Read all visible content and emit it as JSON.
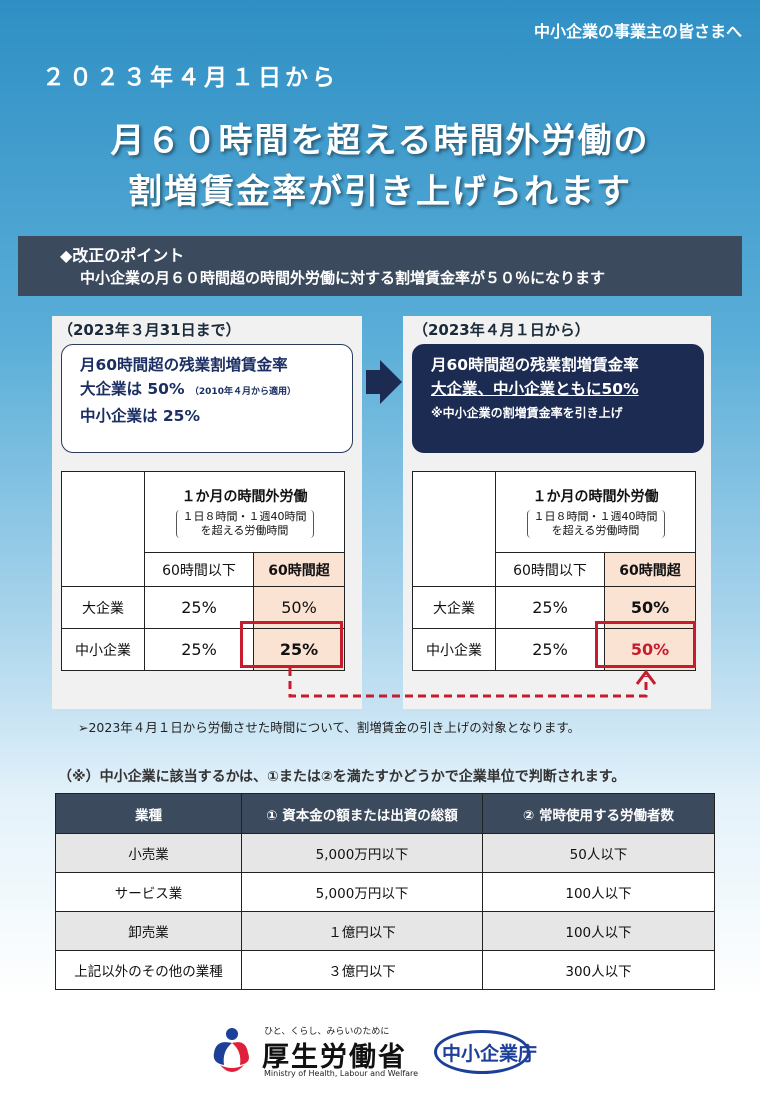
{
  "header": {
    "audience": "中小企業の事業主の皆さまへ",
    "date": "２０２３年４月１日から",
    "title_line1": "月６０時間を超える時間外労働の",
    "title_line2": "割増賃金率が引き上げられます"
  },
  "point": {
    "heading": "◆改正のポイント",
    "text": "中小企業の月６０時間超の時間外労働に対する割増賃金率が５０％になります"
  },
  "before": {
    "period": "（2023年３月31日まで）",
    "rate_title": "月60時間超の残業割増賃金率",
    "large": "大企業は 50%",
    "large_note": "（2010年４月から適用）",
    "sme": "中小企業は 25%",
    "table": {
      "head_main": "１か月の時間外労働",
      "head_sub1": "１日８時間・１週40時間",
      "head_sub2": "を超える労働時間",
      "col1": "60時間以下",
      "col2": "60時間超",
      "rows": [
        {
          "label": "大企業",
          "a": "25%",
          "b": "50%"
        },
        {
          "label": "中小企業",
          "a": "25%",
          "b": "25%"
        }
      ]
    }
  },
  "after": {
    "period": "（2023年４月１日から）",
    "rate_title": "月60時間超の残業割増賃金率",
    "both": "大企業、中小企業ともに50%",
    "note": "※中小企業の割増賃金率を引き上げ",
    "table": {
      "head_main": "１か月の時間外労働",
      "head_sub1": "１日８時間・１週40時間",
      "head_sub2": "を超える労働時間",
      "col1": "60時間以下",
      "col2": "60時間超",
      "rows": [
        {
          "label": "大企業",
          "a": "25%",
          "b": "50%"
        },
        {
          "label": "中小企業",
          "a": "25%",
          "b": "50%"
        }
      ]
    }
  },
  "notes": {
    "applies": "➢2023年４月１日から労働させた時間について、割増賃金の引き上げの対象となります。",
    "criteria": "（※）中小企業に該当するかは、①または②を満たすかどうかで企業単位で判断されます。"
  },
  "criteria_table": {
    "headers": [
      "業種",
      "① 資本金の額または出資の総額",
      "② 常時使用する労働者数"
    ],
    "rows": [
      [
        "小売業",
        "5,000万円以下",
        "50人以下"
      ],
      [
        "サービス業",
        "5,000万円以下",
        "100人以下"
      ],
      [
        "卸売業",
        "１億円以下",
        "100人以下"
      ],
      [
        "上記以外のその他の業種",
        "３億円以下",
        "300人以下"
      ]
    ]
  },
  "logos": {
    "mhlw_tagline": "ひと、くらし、みらいのために",
    "mhlw_name": "厚生労働省",
    "mhlw_en": "Ministry of Health, Labour and Welfare",
    "sme_agency": "中小企業庁"
  },
  "colors": {
    "accent_red": "#c71c2d",
    "navy": "#1c2b52",
    "header_bar": "#3c4a5e",
    "shade": "#fbe3d3"
  }
}
